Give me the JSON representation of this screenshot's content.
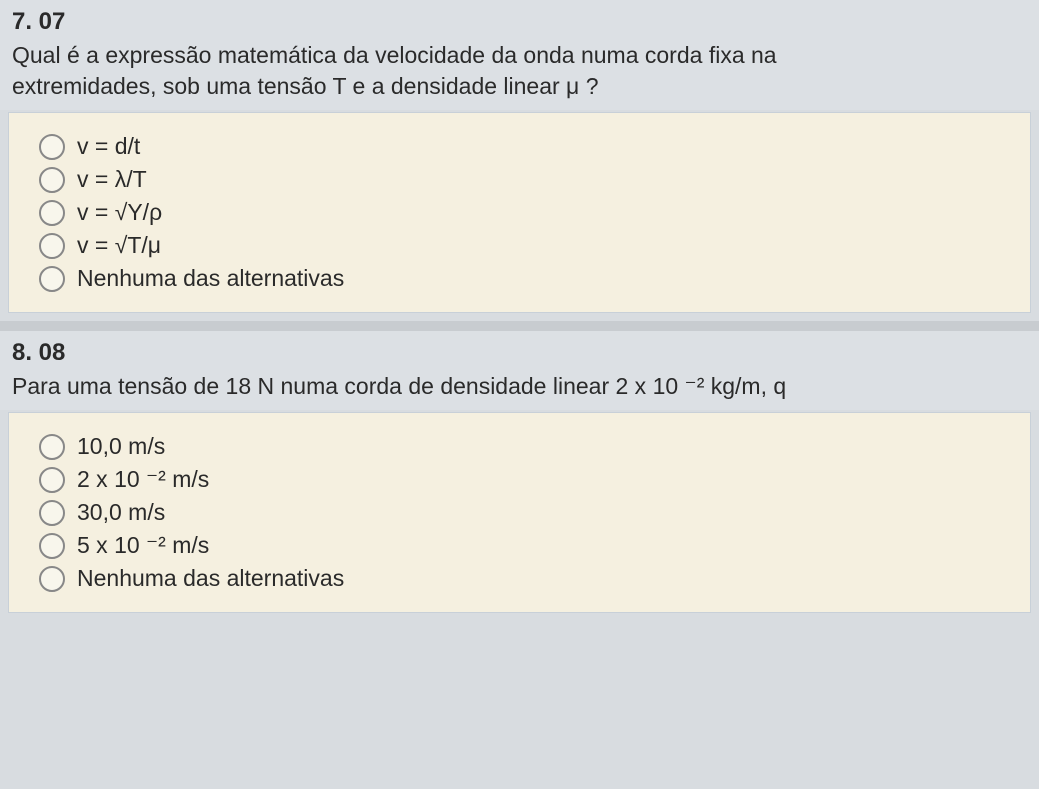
{
  "q7": {
    "number": "7. 07",
    "text_line1": "Qual é a expressão matemática da velocidade da onda numa corda fixa na",
    "text_line2": "extremidades, sob uma tensão T e a densidade linear μ ?",
    "options": {
      "a": "v = d/t",
      "b": "v = λ/T",
      "c": "v = √Y/ρ",
      "d": "v = √T/μ",
      "e": "Nenhuma das alternativas"
    }
  },
  "q8": {
    "number": "8. 08",
    "text": "Para uma tensão de 18 N numa corda de densidade linear 2 x 10 ⁻² kg/m, q",
    "options": {
      "a": "10,0 m/s",
      "b": "2 x 10 ⁻² m/s",
      "c": "30,0 m/s",
      "d": "5 x 10 ⁻² m/s",
      "e": "Nenhuma das alternativas"
    }
  },
  "colors": {
    "page_bg": "#d8dce0",
    "panel_bg": "#f5f0e0",
    "panel_border": "#c8d0d8",
    "text": "#2a2a2a",
    "radio_border": "#888"
  }
}
